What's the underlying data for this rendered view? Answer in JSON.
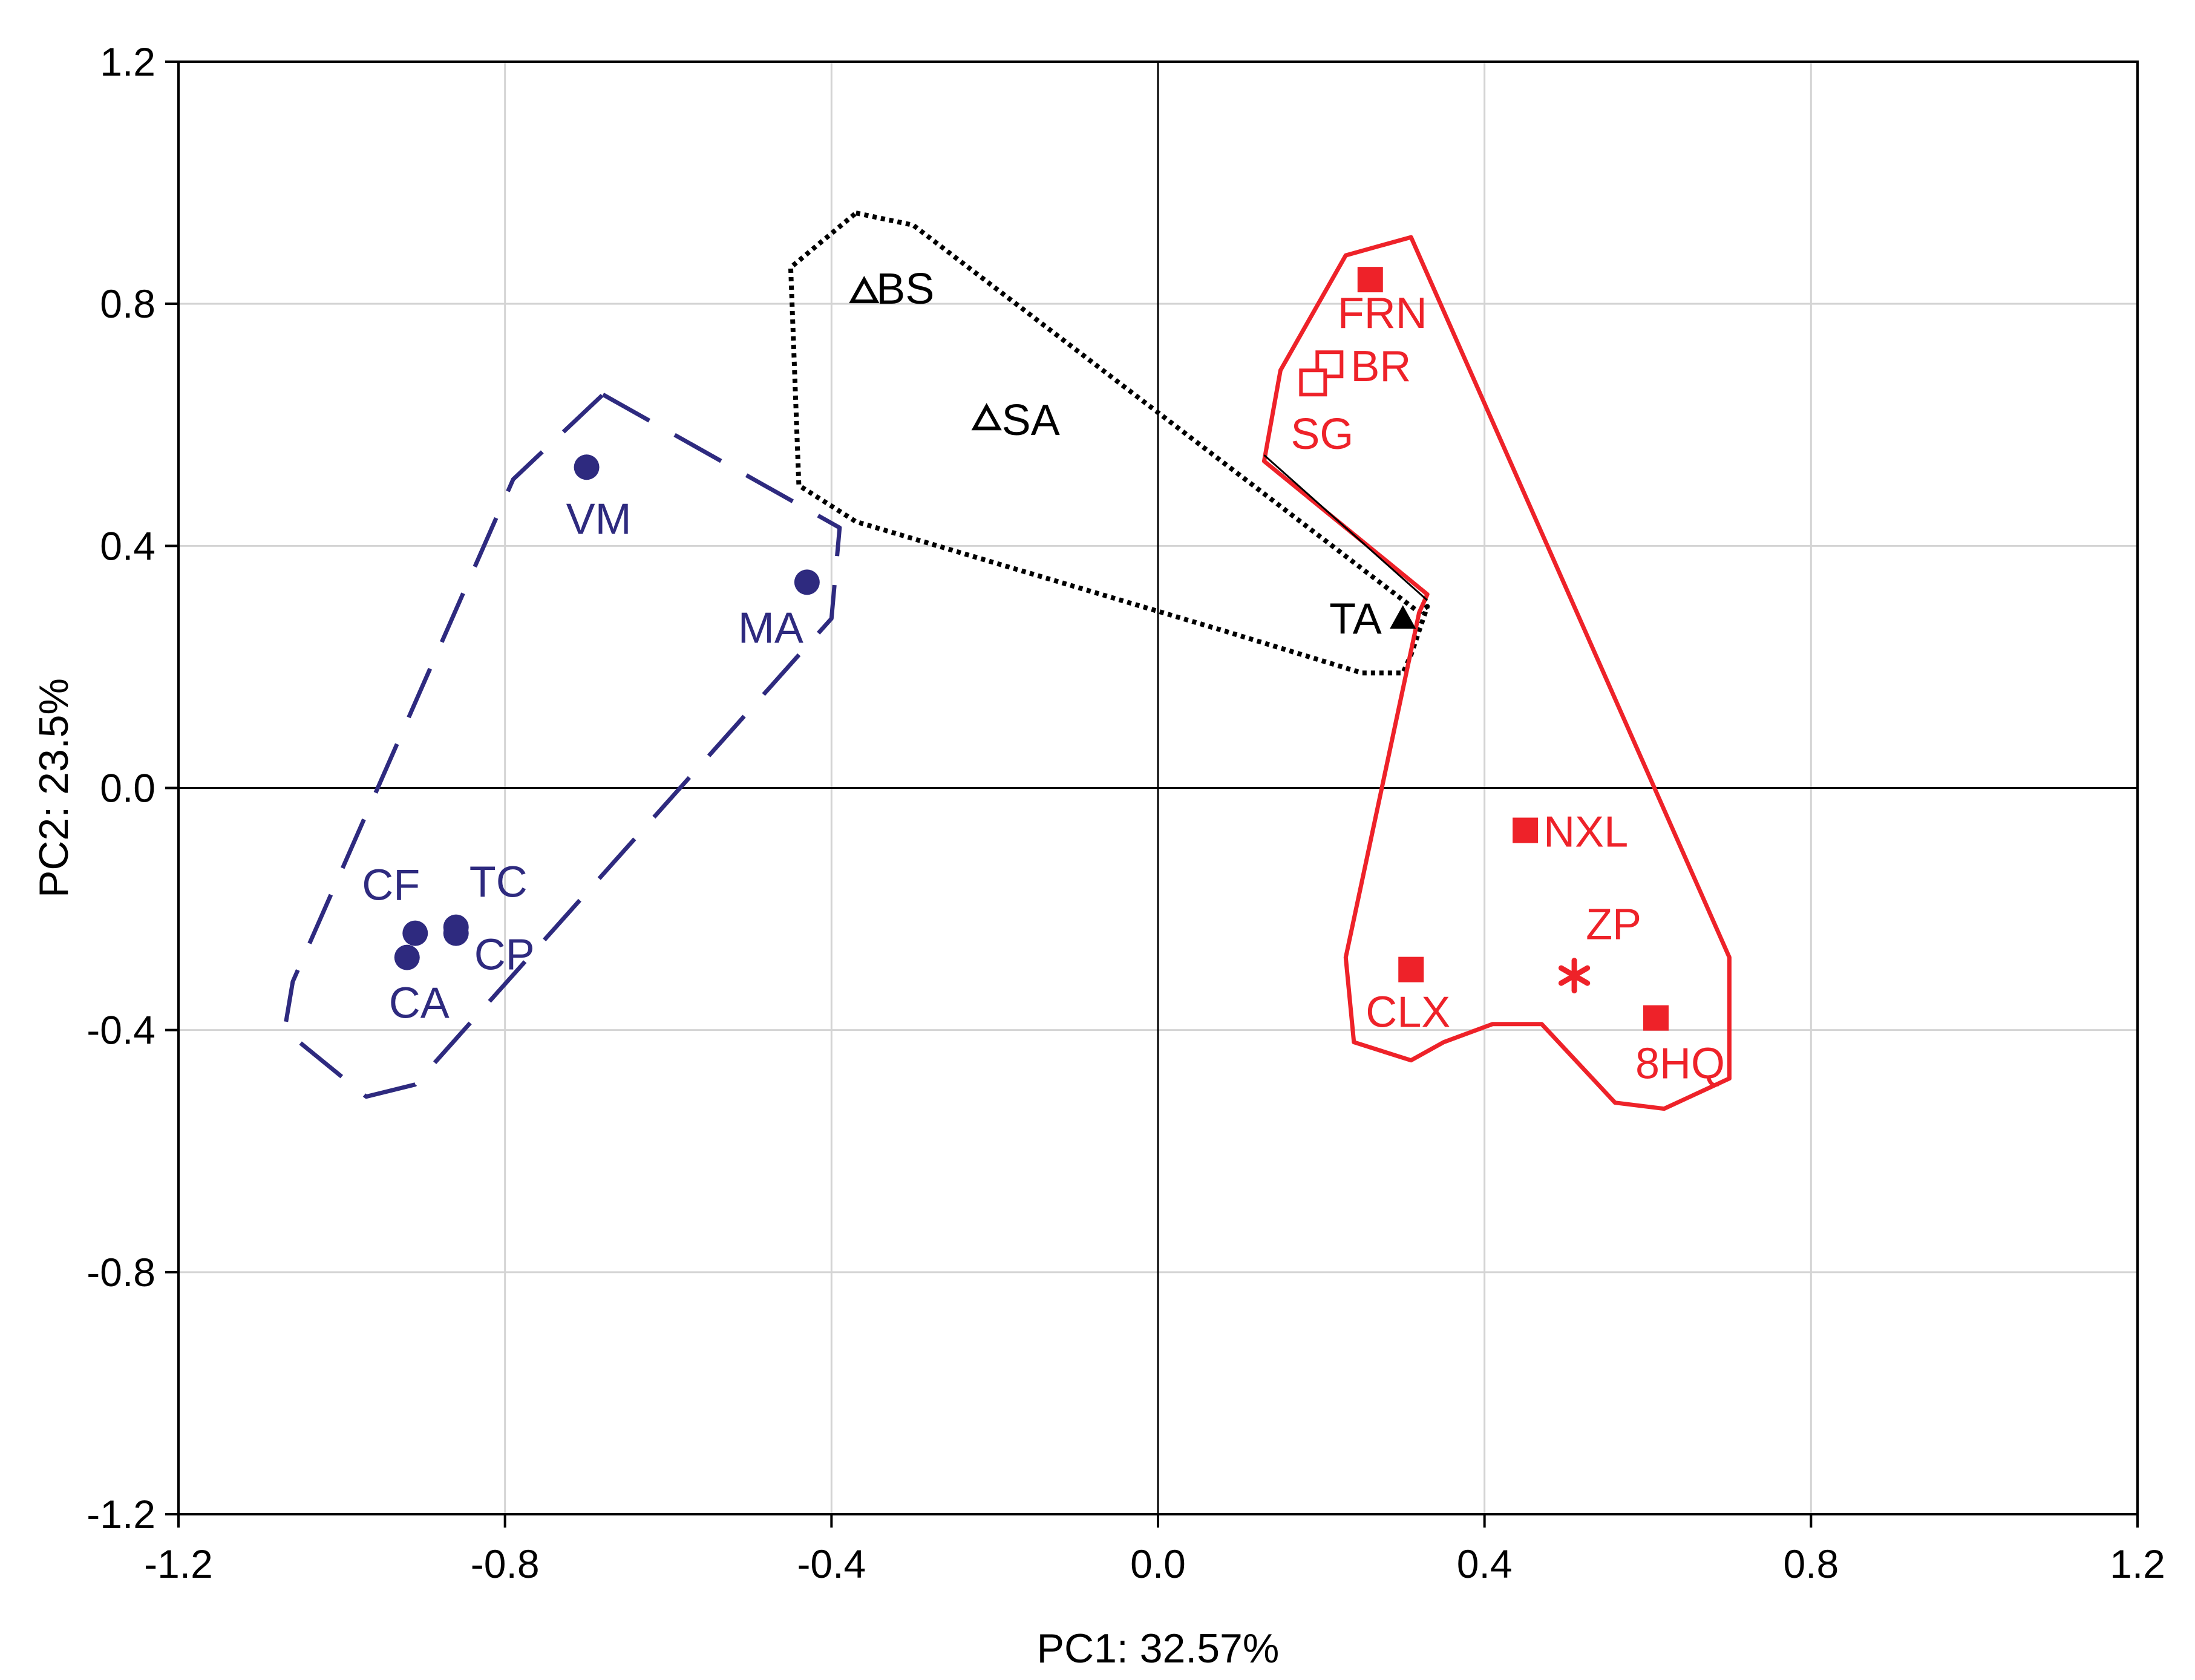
{
  "chart_data": {
    "type": "scatter",
    "title": "",
    "xlabel": "PC1: 32.57%",
    "ylabel": "PC2: 23.5%",
    "xlim": [
      -1.2,
      1.2
    ],
    "ylim": [
      -1.2,
      1.2
    ],
    "xticks": [
      "-1.2",
      "-0.8",
      "-0.4",
      "0.0",
      "0.4",
      "0.8",
      "1.2"
    ],
    "yticks": [
      "1.2",
      "0.8",
      "0.4",
      "0.0",
      "-0.4",
      "-0.8",
      "-1.2"
    ],
    "grid": true,
    "colors": {
      "blue": "#2e2a7f",
      "black": "#000000",
      "red": "#ee2229",
      "grid": "#d4d4d4"
    },
    "groups": [
      {
        "name": "blue",
        "color": "#2e2a7f",
        "marker": "filled-circle",
        "outline_style": "dashed",
        "outline": [
          [
            -0.68,
            0.65
          ],
          [
            -0.39,
            0.43
          ],
          [
            -0.4,
            0.28
          ],
          [
            -0.42,
            0.25
          ],
          [
            -0.91,
            -0.49
          ],
          [
            -0.97,
            -0.51
          ],
          [
            -1.07,
            -0.4
          ],
          [
            -1.06,
            -0.32
          ],
          [
            -0.79,
            0.51
          ]
        ],
        "points": [
          {
            "label": "VM",
            "x": -0.7,
            "y": 0.53
          },
          {
            "label": "MA",
            "x": -0.43,
            "y": 0.34
          },
          {
            "label": "CF",
            "x": -0.91,
            "y": -0.24
          },
          {
            "label": "TC",
            "x": -0.86,
            "y": -0.23
          },
          {
            "label": "CP",
            "x": -0.86,
            "y": -0.24
          },
          {
            "label": "CA",
            "x": -0.92,
            "y": -0.28
          }
        ]
      },
      {
        "name": "black",
        "color": "#000000",
        "marker": "triangle",
        "outline_style": "dotted",
        "outline": [
          [
            -0.37,
            0.95
          ],
          [
            -0.3,
            0.93
          ],
          [
            0.32,
            0.29
          ],
          [
            0.33,
            0.3
          ],
          [
            0.31,
            0.22
          ],
          [
            0.3,
            0.19
          ],
          [
            0.25,
            0.19
          ],
          [
            0.08,
            0.26
          ],
          [
            -0.37,
            0.44
          ],
          [
            -0.44,
            0.5
          ],
          [
            -0.45,
            0.86
          ]
        ],
        "points": [
          {
            "label": "BS",
            "x": -0.36,
            "y": 0.82,
            "filled": false
          },
          {
            "label": "SA",
            "x": -0.21,
            "y": 0.61,
            "filled": false
          },
          {
            "label": "TA",
            "x": 0.3,
            "y": 0.28,
            "filled": true
          }
        ]
      },
      {
        "name": "red",
        "color": "#ee2229",
        "marker": "square",
        "outline_style": "solid",
        "outline": [
          [
            0.13,
            0.54
          ],
          [
            0.15,
            0.69
          ],
          [
            0.23,
            0.88
          ],
          [
            0.31,
            0.91
          ],
          [
            0.7,
            -0.28
          ],
          [
            0.7,
            -0.48
          ],
          [
            0.62,
            -0.53
          ],
          [
            0.56,
            -0.52
          ],
          [
            0.47,
            -0.39
          ],
          [
            0.45,
            -0.39
          ],
          [
            0.41,
            -0.39
          ],
          [
            0.35,
            -0.42
          ],
          [
            0.31,
            -0.45
          ],
          [
            0.24,
            -0.42
          ],
          [
            0.23,
            -0.28
          ],
          [
            0.32,
            0.29
          ],
          [
            0.33,
            0.32
          ]
        ],
        "points": [
          {
            "label": "FRN",
            "x": 0.26,
            "y": 0.84,
            "filled": true
          },
          {
            "label": "BR",
            "x": 0.21,
            "y": 0.7,
            "filled": false
          },
          {
            "label": "SG",
            "x": 0.19,
            "y": 0.67,
            "filled": false
          },
          {
            "label": "NXL",
            "x": 0.45,
            "y": -0.07,
            "filled": true
          },
          {
            "label": "ZP",
            "x": 0.51,
            "y": -0.31,
            "marker": "asterisk"
          },
          {
            "label": "CLX",
            "x": 0.31,
            "y": -0.3,
            "filled": true
          },
          {
            "label": "8HQ",
            "x": 0.61,
            "y": -0.38,
            "filled": true
          }
        ]
      }
    ]
  }
}
